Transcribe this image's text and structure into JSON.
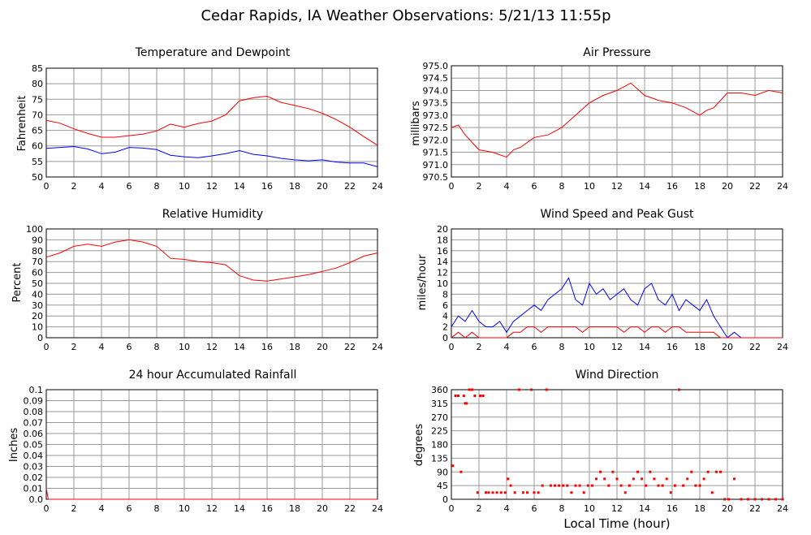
{
  "title": "Cedar Rapids, IA Weather Observations: 5/21/13 11:55p",
  "x_axis_title": "Local Time (hour)",
  "colors": {
    "red": "#ff0000",
    "blue": "#0000ff",
    "grid": "#999999",
    "frame": "#000000"
  },
  "chart_data": [
    {
      "id": "temp",
      "type": "line",
      "title": "Temperature and Dewpoint",
      "xlabel": "",
      "ylabel": "Fahrenheit",
      "xlim": [
        0,
        24
      ],
      "ylim": [
        50,
        85
      ],
      "xticks": [
        0,
        2,
        4,
        6,
        8,
        10,
        12,
        14,
        16,
        18,
        20,
        22,
        24
      ],
      "yticks": [
        50,
        55,
        60,
        65,
        70,
        75,
        80,
        85
      ],
      "grid": true,
      "series": [
        {
          "color": "#ff0000",
          "x": [
            0,
            1,
            2,
            3,
            4,
            5,
            6,
            7,
            8,
            9,
            10,
            11,
            12,
            13,
            14,
            15,
            16,
            17,
            18,
            19,
            20,
            21,
            22,
            23,
            24
          ],
          "y": [
            68.2,
            67.3,
            65.5,
            64.0,
            62.8,
            62.8,
            63.3,
            63.8,
            64.8,
            67.0,
            66.0,
            67.2,
            68.0,
            70.0,
            74.5,
            75.5,
            76.0,
            74.0,
            73.0,
            72.0,
            70.5,
            68.5,
            66.0,
            63.0,
            60.2
          ]
        },
        {
          "color": "#0000ff",
          "x": [
            0,
            1,
            2,
            3,
            4,
            5,
            6,
            7,
            8,
            9,
            10,
            11,
            12,
            13,
            14,
            15,
            16,
            17,
            18,
            19,
            20,
            21,
            22,
            23,
            24
          ],
          "y": [
            59.2,
            59.5,
            59.8,
            59.0,
            57.5,
            58.0,
            59.5,
            59.3,
            58.8,
            57.0,
            56.5,
            56.2,
            56.8,
            57.5,
            58.5,
            57.3,
            56.8,
            56.0,
            55.5,
            55.2,
            55.5,
            54.8,
            54.5,
            54.5,
            53.3
          ]
        }
      ]
    },
    {
      "id": "pressure",
      "type": "line",
      "title": "Air Pressure",
      "xlabel": "",
      "ylabel": "millibars",
      "xlim": [
        0,
        24
      ],
      "ylim": [
        970.5,
        975.0
      ],
      "xticks": [
        0,
        2,
        4,
        6,
        8,
        10,
        12,
        14,
        16,
        18,
        20,
        22,
        24
      ],
      "yticks": [
        970.5,
        971.0,
        971.5,
        972.0,
        972.5,
        973.0,
        973.5,
        974.0,
        974.5,
        975.0
      ],
      "grid": true,
      "series": [
        {
          "color": "#ff0000",
          "x": [
            0,
            0.5,
            1,
            1.5,
            2,
            3,
            4,
            4.5,
            5,
            6,
            7,
            8,
            9,
            10,
            11,
            12,
            13,
            14,
            15,
            16,
            17,
            18,
            18.5,
            19,
            20,
            21,
            22,
            23,
            24
          ],
          "y": [
            972.5,
            972.6,
            972.2,
            971.9,
            971.6,
            971.5,
            971.3,
            971.6,
            971.7,
            972.1,
            972.2,
            972.5,
            973.0,
            973.5,
            973.8,
            974.0,
            974.3,
            973.8,
            973.6,
            973.5,
            973.3,
            973.0,
            973.2,
            973.3,
            973.9,
            973.9,
            973.8,
            974.0,
            973.9
          ]
        }
      ]
    },
    {
      "id": "humidity",
      "type": "line",
      "title": "Relative Humidity",
      "xlabel": "",
      "ylabel": "Percent",
      "xlim": [
        0,
        24
      ],
      "ylim": [
        0,
        100
      ],
      "xticks": [
        0,
        2,
        4,
        6,
        8,
        10,
        12,
        14,
        16,
        18,
        20,
        22,
        24
      ],
      "yticks": [
        0,
        10,
        20,
        30,
        40,
        50,
        60,
        70,
        80,
        90,
        100
      ],
      "grid": true,
      "series": [
        {
          "color": "#ff0000",
          "x": [
            0,
            1,
            2,
            3,
            4,
            5,
            6,
            7,
            8,
            9,
            10,
            11,
            12,
            13,
            14,
            15,
            16,
            17,
            18,
            19,
            20,
            21,
            22,
            23,
            24
          ],
          "y": [
            74,
            78,
            84,
            86,
            84,
            88,
            90,
            88,
            84,
            73,
            72,
            70,
            69,
            67,
            57,
            53,
            52,
            54,
            56,
            58,
            61,
            64,
            69,
            75,
            78
          ]
        }
      ]
    },
    {
      "id": "wind",
      "type": "line",
      "title": "Wind Speed and Peak Gust",
      "xlabel": "",
      "ylabel": "miles/hour",
      "xlim": [
        0,
        24
      ],
      "ylim": [
        0,
        20
      ],
      "xticks": [
        0,
        2,
        4,
        6,
        8,
        10,
        12,
        14,
        16,
        18,
        20,
        22,
        24
      ],
      "yticks": [
        0,
        2,
        4,
        6,
        8,
        10,
        12,
        14,
        16,
        18,
        20
      ],
      "grid": true,
      "series": [
        {
          "color": "#0000ff",
          "x": [
            0,
            0.5,
            1,
            1.5,
            2,
            2.5,
            3,
            3.5,
            4,
            4.5,
            5,
            5.5,
            6,
            6.5,
            7,
            7.5,
            8,
            8.5,
            9,
            9.5,
            10,
            10.5,
            11,
            11.5,
            12,
            12.5,
            13,
            13.5,
            14,
            14.5,
            15,
            15.5,
            16,
            16.5,
            17,
            17.5,
            18,
            18.5,
            19,
            19.5,
            20,
            20.5,
            21,
            22,
            23,
            24
          ],
          "y": [
            2,
            4,
            3,
            5,
            3,
            2,
            2,
            3,
            1,
            3,
            4,
            5,
            6,
            5,
            7,
            8,
            9,
            11,
            7,
            6,
            10,
            8,
            9,
            7,
            8,
            9,
            7,
            6,
            9,
            10,
            7,
            6,
            8,
            5,
            7,
            6,
            5,
            7,
            4,
            2,
            0,
            1,
            0,
            0,
            0,
            0
          ]
        },
        {
          "color": "#ff0000",
          "x": [
            0,
            0.5,
            1,
            1.5,
            2,
            2.5,
            3,
            3.5,
            4,
            4.5,
            5,
            5.5,
            6,
            6.5,
            7,
            7.5,
            8,
            8.5,
            9,
            9.5,
            10,
            10.5,
            11,
            11.5,
            12,
            12.5,
            13,
            13.5,
            14,
            14.5,
            15,
            15.5,
            16,
            16.5,
            17,
            17.5,
            18,
            18.5,
            19,
            19.5,
            20,
            21,
            22,
            23,
            24
          ],
          "y": [
            0,
            1,
            0,
            1,
            0,
            0,
            0,
            0,
            0,
            1,
            1,
            2,
            2,
            1,
            2,
            2,
            2,
            2,
            2,
            1,
            2,
            2,
            2,
            2,
            2,
            1,
            2,
            2,
            1,
            2,
            2,
            1,
            2,
            2,
            1,
            1,
            1,
            1,
            1,
            0,
            0,
            0,
            0,
            0,
            0
          ]
        }
      ]
    },
    {
      "id": "rain",
      "type": "line",
      "title": "24 hour Accumulated Rainfall",
      "xlabel": "",
      "ylabel": "Inches",
      "xlim": [
        0,
        24
      ],
      "ylim": [
        0.0,
        0.1
      ],
      "xticks": [
        0,
        2,
        4,
        6,
        8,
        10,
        12,
        14,
        16,
        18,
        20,
        22,
        24
      ],
      "yticks": [
        0.0,
        0.01,
        0.02,
        0.03,
        0.04,
        0.05,
        0.06,
        0.07,
        0.08,
        0.09,
        0.1
      ],
      "grid": true,
      "series": [
        {
          "color": "#ff0000",
          "x": [
            0,
            0.15,
            24
          ],
          "y": [
            0.01,
            0.0,
            0.0
          ]
        }
      ]
    },
    {
      "id": "direction",
      "type": "scatter",
      "title": "Wind Direction",
      "xlabel": "Local Time (hour)",
      "ylabel": "degrees",
      "xlim": [
        0,
        24
      ],
      "ylim": [
        0,
        360
      ],
      "xticks": [
        0,
        2,
        4,
        6,
        8,
        10,
        12,
        14,
        16,
        18,
        20,
        22,
        24
      ],
      "yticks": [
        0,
        45,
        90,
        135,
        180,
        225,
        270,
        315,
        360
      ],
      "grid": true,
      "series": [
        {
          "color": "#ff0000",
          "x": [
            0.1,
            0.3,
            0.5,
            0.7,
            0.9,
            1.0,
            1.1,
            1.3,
            1.5,
            1.7,
            1.9,
            2.1,
            2.3,
            2.5,
            2.7,
            3.0,
            3.3,
            3.6,
            3.9,
            4.1,
            4.3,
            4.6,
            4.9,
            5.2,
            5.5,
            5.8,
            6.0,
            6.3,
            6.6,
            6.9,
            7.2,
            7.5,
            7.8,
            8.1,
            8.4,
            8.7,
            9.0,
            9.3,
            9.6,
            9.9,
            10.2,
            10.5,
            10.8,
            11.1,
            11.4,
            11.7,
            12.0,
            12.3,
            12.6,
            12.9,
            13.2,
            13.5,
            13.8,
            14.1,
            14.4,
            14.7,
            15.0,
            15.3,
            15.6,
            15.9,
            16.2,
            16.5,
            16.8,
            17.1,
            17.4,
            17.7,
            18.0,
            18.3,
            18.6,
            18.9,
            19.2,
            19.5,
            19.8,
            20.1,
            20.5,
            21.0,
            21.5,
            22.0,
            22.5,
            23.0,
            23.5,
            24.0
          ],
          "y": [
            110,
            340,
            340,
            90,
            340,
            315,
            315,
            360,
            360,
            340,
            22,
            340,
            340,
            22,
            22,
            22,
            22,
            22,
            22,
            67,
            45,
            22,
            360,
            22,
            22,
            360,
            22,
            22,
            45,
            360,
            45,
            45,
            45,
            45,
            45,
            22,
            45,
            45,
            22,
            45,
            45,
            67,
            90,
            67,
            45,
            90,
            67,
            45,
            22,
            45,
            67,
            90,
            67,
            45,
            90,
            67,
            45,
            45,
            67,
            22,
            45,
            360,
            45,
            67,
            90,
            45,
            45,
            67,
            90,
            22,
            90,
            90,
            0,
            0,
            67,
            0,
            0,
            0,
            0,
            0,
            0,
            0
          ]
        }
      ]
    }
  ]
}
